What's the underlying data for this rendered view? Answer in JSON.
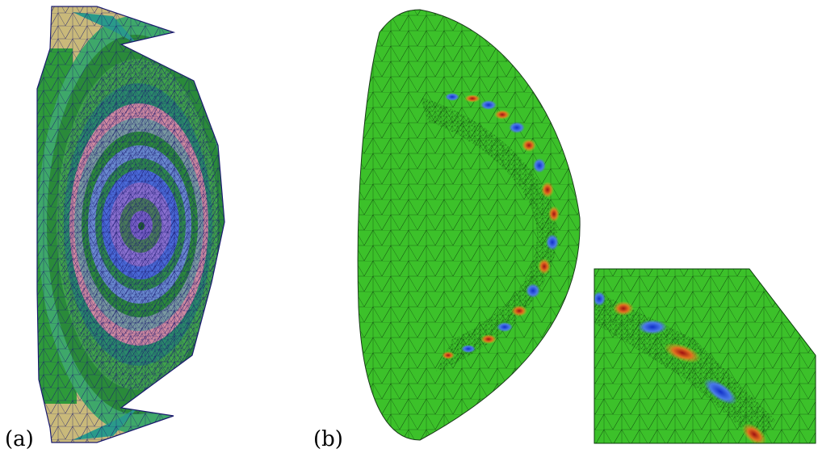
{
  "panels": [
    {
      "label": "(a)"
    },
    {
      "label": "(b)"
    }
  ],
  "colors": {
    "mesh_edge_dark": "#1a1a6e",
    "mesh_edge_green": "#0b4a0b",
    "tan": "#c9b97a",
    "green_bg": "#3cc12a",
    "blue": "#3050d8",
    "red": "#c02020"
  }
}
